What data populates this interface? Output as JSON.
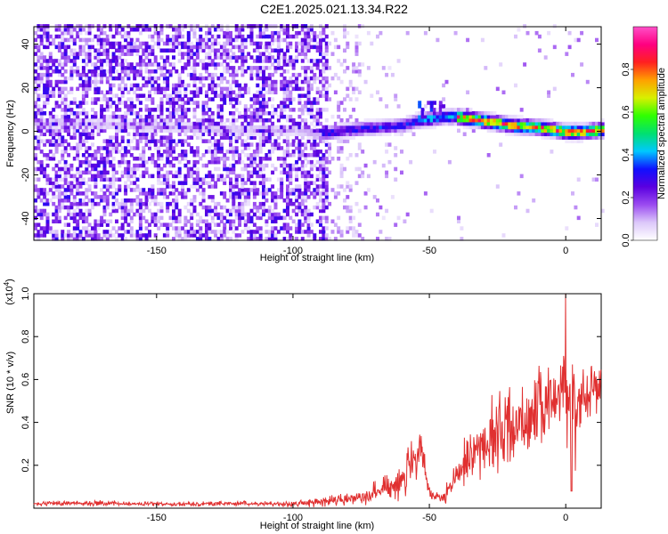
{
  "title": "C2E1.2025.021.13.34.R22",
  "chart_data": [
    {
      "type": "heatmap",
      "xlabel": "Height of straight line (km)",
      "ylabel": "Frequency (Hz)",
      "xlim": [
        -195,
        13
      ],
      "ylim": [
        -50,
        48
      ],
      "xticks": [
        -150,
        -100,
        -50,
        0
      ],
      "xtick_labels": [
        "-150",
        "-100",
        "-50",
        "0"
      ],
      "yticks": [
        -40,
        -20,
        0,
        20,
        40
      ],
      "ytick_labels": [
        "-40",
        "-20",
        "0",
        "20",
        "40"
      ],
      "colorbar": {
        "label": "Normalized spectral amplitude",
        "range": [
          0,
          1
        ],
        "ticks": [
          0.0,
          0.2,
          0.4,
          0.6,
          0.8
        ],
        "tick_labels": [
          "0.0",
          "0.2",
          "0.4",
          "0.6",
          "0.8"
        ],
        "colors": [
          "#ffffff",
          "#dcc8fa",
          "#9b4bf0",
          "#5a00e0",
          "#1010ff",
          "#00c8ff",
          "#00e070",
          "#30ff00",
          "#d8f000",
          "#ffa000",
          "#ff2020",
          "#ff0080",
          "#ff50c8"
        ]
      },
      "ridge": {
        "x": [
          -195,
          -180,
          -160,
          -140,
          -120,
          -100,
          -90,
          -80,
          -70,
          -60,
          -55,
          -50,
          -45,
          -40,
          -30,
          -20,
          -10,
          0,
          5,
          13
        ],
        "frequency": [
          3,
          3,
          2,
          1,
          0,
          0,
          -2,
          0,
          1,
          2,
          4,
          5,
          6,
          6,
          4,
          2,
          1,
          -1,
          -1,
          0
        ]
      }
    },
    {
      "type": "line",
      "xlabel": "Height of straight line (km)",
      "ylabel": "SNR (10 * v/v)",
      "y_multiplier": "(x10^4)",
      "xlim": [
        -195,
        13
      ],
      "ylim": [
        0,
        1.0
      ],
      "xticks": [
        -150,
        -100,
        -50,
        0
      ],
      "xtick_labels": [
        "-150",
        "-100",
        "-50",
        "0"
      ],
      "yticks": [
        0.2,
        0.4,
        0.6,
        0.8,
        1.0
      ],
      "ytick_labels": [
        "0.2",
        "0.4",
        "0.6",
        "0.8",
        "1.0"
      ],
      "color": "#e03030",
      "envelope": {
        "x": [
          -195,
          -180,
          -160,
          -140,
          -120,
          -110,
          -100,
          -90,
          -80,
          -75,
          -70,
          -65,
          -60,
          -56,
          -53,
          -50,
          -48,
          -45,
          -42,
          -40,
          -35,
          -30,
          -25,
          -20,
          -15,
          -10,
          -5,
          -2,
          0,
          2,
          5,
          8,
          13
        ],
        "mean": [
          0.02,
          0.025,
          0.02,
          0.02,
          0.022,
          0.02,
          0.02,
          0.03,
          0.04,
          0.06,
          0.07,
          0.1,
          0.14,
          0.2,
          0.25,
          0.08,
          0.05,
          0.04,
          0.1,
          0.15,
          0.25,
          0.3,
          0.35,
          0.38,
          0.42,
          0.45,
          0.5,
          0.55,
          0.6,
          0.45,
          0.5,
          0.55,
          0.6
        ],
        "amp": [
          0.01,
          0.015,
          0.01,
          0.01,
          0.012,
          0.01,
          0.015,
          0.02,
          0.03,
          0.04,
          0.05,
          0.07,
          0.1,
          0.12,
          0.12,
          0.05,
          0.03,
          0.03,
          0.05,
          0.08,
          0.12,
          0.15,
          0.2,
          0.2,
          0.2,
          0.2,
          0.15,
          0.15,
          0.2,
          0.3,
          0.15,
          0.15,
          0.12
        ]
      },
      "peak": {
        "x": 0,
        "y": 1.0
      }
    }
  ]
}
